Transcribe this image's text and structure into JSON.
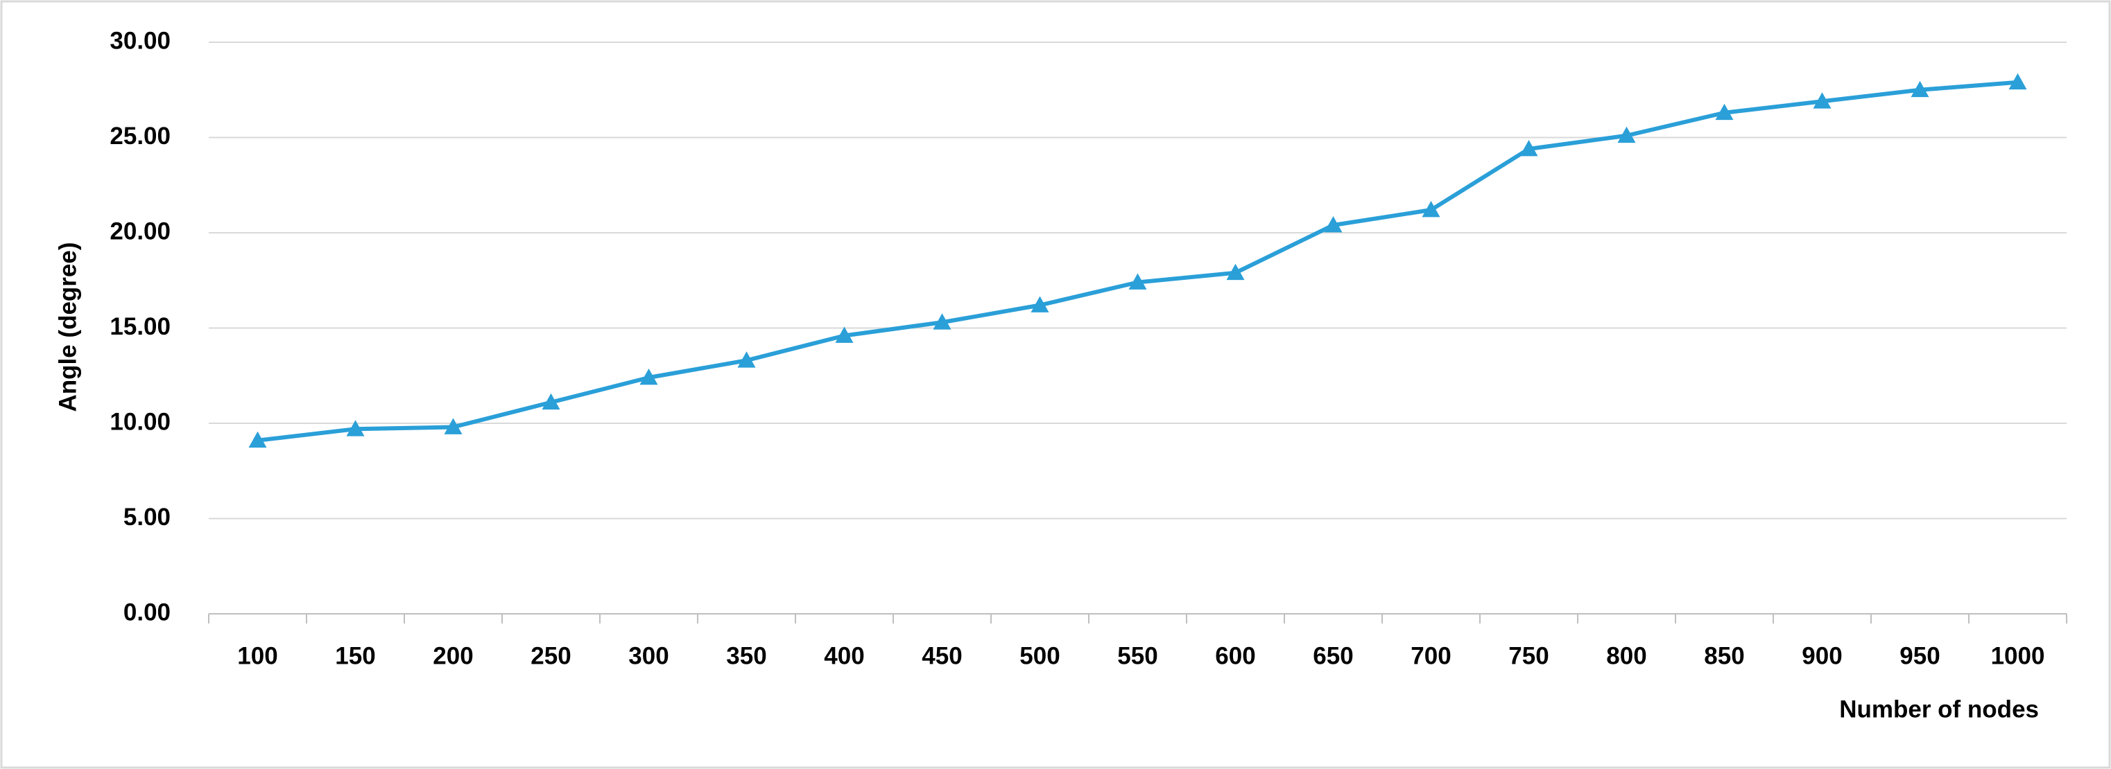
{
  "chart_data": {
    "type": "line",
    "x_label": "Number of nodes",
    "y_label": "Angle (degree)",
    "categories": [
      "100",
      "150",
      "200",
      "250",
      "300",
      "350",
      "400",
      "450",
      "500",
      "550",
      "600",
      "650",
      "700",
      "750",
      "800",
      "850",
      "900",
      "950",
      "1000"
    ],
    "values": [
      9.1,
      9.7,
      9.8,
      11.1,
      12.4,
      13.3,
      14.6,
      15.3,
      16.2,
      17.4,
      17.9,
      20.4,
      21.2,
      24.4,
      25.1,
      26.3,
      26.9,
      27.5,
      27.9
    ],
    "color": "#2a9fd8",
    "marker": "triangle",
    "ylim": [
      0,
      30
    ],
    "yticks": [
      {
        "value": 0,
        "label": "0.00"
      },
      {
        "value": 5,
        "label": "5.00"
      },
      {
        "value": 10,
        "label": "10.00"
      },
      {
        "value": 15,
        "label": "15.00"
      },
      {
        "value": 20,
        "label": "20.00"
      },
      {
        "value": 25,
        "label": "25.00"
      },
      {
        "value": 30,
        "label": "30.00"
      }
    ],
    "grid": true
  }
}
